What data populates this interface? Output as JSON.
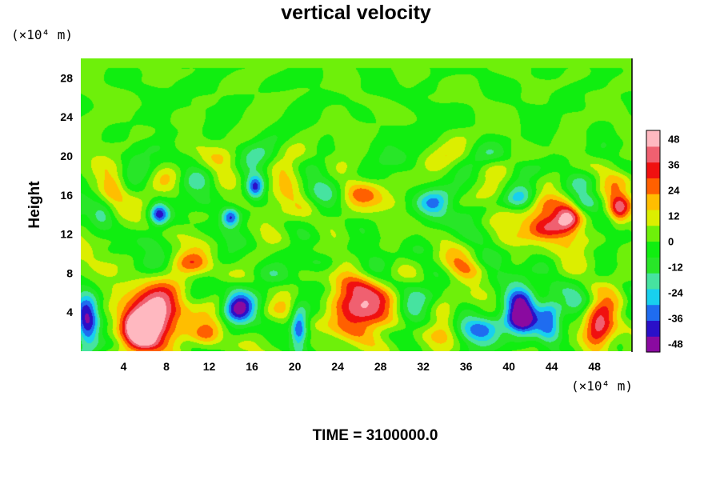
{
  "chart_data": {
    "type": "heatmap",
    "title": "vertical velocity",
    "ylabel": "Height",
    "y_unit_label": "(×10⁴ m)",
    "x_unit_label": "(×10⁴ m)",
    "xlim": [
      0,
      51.5
    ],
    "ylim": [
      0,
      30
    ],
    "x_ticks": [
      4,
      8,
      12,
      16,
      20,
      24,
      28,
      32,
      36,
      40,
      44,
      48
    ],
    "y_ticks": [
      4,
      8,
      12,
      16,
      20,
      24,
      28
    ],
    "colorbar": {
      "range": [
        -52,
        52
      ],
      "ticks": [
        48,
        36,
        24,
        12,
        0,
        -12,
        -24,
        -36,
        -48
      ],
      "colors": [
        "#8a0aa0",
        "#2a10c8",
        "#1f6cf0",
        "#18d0ee",
        "#46e3a0",
        "#28e628",
        "#10ee10",
        "#6ef00a",
        "#dcee00",
        "#ffbe00",
        "#ff6000",
        "#f01010",
        "#f06070",
        "#ffb8c0"
      ]
    },
    "features": [
      {
        "x": 7.0,
        "y": 3.8,
        "rx": 2.7,
        "ry": 3.3,
        "w": 50
      },
      {
        "x": 5.6,
        "y": 2.2,
        "rx": 1.7,
        "ry": 2.0,
        "w": 46
      },
      {
        "x": 26.0,
        "y": 4.3,
        "rx": 3.0,
        "ry": 3.3,
        "w": 42
      },
      {
        "x": 48.3,
        "y": 2.4,
        "rx": 1.5,
        "ry": 2.3,
        "w": 46
      },
      {
        "x": 43.6,
        "y": 12.8,
        "rx": 2.2,
        "ry": 2.4,
        "w": 40
      },
      {
        "x": 45.6,
        "y": 13.9,
        "rx": 1.2,
        "ry": 1.6,
        "w": 36
      },
      {
        "x": 50.3,
        "y": 14.2,
        "rx": 1.0,
        "ry": 1.5,
        "w": 32
      },
      {
        "x": 41.2,
        "y": 4.0,
        "rx": 1.5,
        "ry": 2.8,
        "w": -52
      },
      {
        "x": 43.8,
        "y": 3.4,
        "rx": 1.2,
        "ry": 2.3,
        "w": -42
      },
      {
        "x": 0.6,
        "y": 3.0,
        "rx": 1.1,
        "ry": 2.5,
        "w": -46
      },
      {
        "x": 14.6,
        "y": 4.6,
        "rx": 1.4,
        "ry": 2.2,
        "w": -36
      },
      {
        "x": 20.4,
        "y": 2.4,
        "rx": 0.8,
        "ry": 2.2,
        "w": -40
      },
      {
        "x": 7.3,
        "y": 14.0,
        "rx": 0.9,
        "ry": 1.2,
        "w": -38
      },
      {
        "x": 16.3,
        "y": 16.8,
        "rx": 0.8,
        "ry": 1.1,
        "w": -34
      },
      {
        "x": 14.0,
        "y": 13.7,
        "rx": 0.8,
        "ry": 1.0,
        "w": -32
      },
      {
        "x": 37.5,
        "y": 2.6,
        "rx": 2.2,
        "ry": 1.3,
        "w": -32
      },
      {
        "x": 11.8,
        "y": 1.7,
        "rx": 1.5,
        "ry": 1.4,
        "w": 28
      },
      {
        "x": 31.0,
        "y": 4.0,
        "rx": 1.5,
        "ry": 2.0,
        "w": -18
      },
      {
        "x": 34.0,
        "y": 3.5,
        "rx": 1.3,
        "ry": 2.0,
        "w": 18
      },
      {
        "x": 3.0,
        "y": 16.5,
        "rx": 1.2,
        "ry": 1.5,
        "w": 18
      },
      {
        "x": 26.0,
        "y": 16.0,
        "rx": 2.0,
        "ry": 1.5,
        "w": 16
      },
      {
        "x": 33.0,
        "y": 15.0,
        "rx": 1.5,
        "ry": 1.5,
        "w": -22
      },
      {
        "x": 41.0,
        "y": 15.5,
        "rx": 1.5,
        "ry": 1.5,
        "w": -24
      },
      {
        "x": 21.0,
        "y": 14.5,
        "rx": 1.5,
        "ry": 1.2,
        "w": 14
      },
      {
        "x": 10.5,
        "y": 9.0,
        "rx": 2.5,
        "ry": 1.2,
        "w": 14
      },
      {
        "x": 22.5,
        "y": 9.0,
        "rx": 2.0,
        "ry": 1.2,
        "w": -14
      },
      {
        "x": 2.0,
        "y": 14.0,
        "rx": 1.2,
        "ry": 1.2,
        "w": -20
      },
      {
        "x": 36.0,
        "y": 8.5,
        "rx": 2.0,
        "ry": 1.0,
        "w": 12
      }
    ],
    "time_label": "TIME = 3100000.0"
  }
}
